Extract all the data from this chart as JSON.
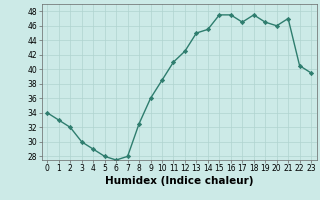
{
  "x": [
    0,
    1,
    2,
    3,
    4,
    5,
    6,
    7,
    8,
    9,
    10,
    11,
    12,
    13,
    14,
    15,
    16,
    17,
    18,
    19,
    20,
    21,
    22,
    23
  ],
  "y": [
    34,
    33,
    32,
    30,
    29,
    28,
    27.5,
    28,
    32.5,
    36,
    38.5,
    41,
    42.5,
    45,
    45.5,
    47.5,
    47.5,
    46.5,
    47.5,
    46.5,
    46,
    47,
    40.5,
    39.5
  ],
  "line_color": "#2e7d6e",
  "marker": "D",
  "marker_size": 2.2,
  "bg_color": "#cceae7",
  "grid_color": "#b0d4d0",
  "xlabel": "Humidex (Indice chaleur)",
  "ylim": [
    27.5,
    49
  ],
  "xlim": [
    -0.5,
    23.5
  ],
  "yticks": [
    28,
    30,
    32,
    34,
    36,
    38,
    40,
    42,
    44,
    46,
    48
  ],
  "xticks": [
    0,
    1,
    2,
    3,
    4,
    5,
    6,
    7,
    8,
    9,
    10,
    11,
    12,
    13,
    14,
    15,
    16,
    17,
    18,
    19,
    20,
    21,
    22,
    23
  ],
  "tick_fontsize": 5.5,
  "xlabel_fontsize": 7.5,
  "line_width": 1.0
}
